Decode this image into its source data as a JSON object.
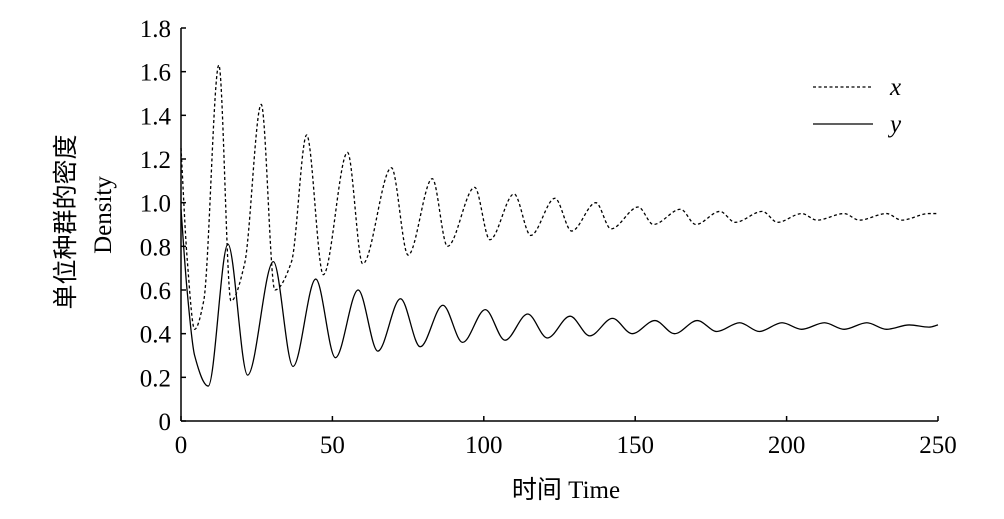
{
  "chart_data": {
    "type": "line",
    "xlabel": "时间 Time",
    "ylabel_cn": "单位种群的密度",
    "ylabel_en": "Density",
    "xlim": [
      0,
      250
    ],
    "ylim": [
      0,
      1.8
    ],
    "xticks": [
      0,
      50,
      100,
      150,
      200,
      250
    ],
    "xtick_labels": [
      "0",
      "50",
      "100",
      "150",
      "200",
      "250"
    ],
    "yticks": [
      0,
      0.2,
      0.4,
      0.6,
      0.8,
      1.0,
      1.2,
      1.4,
      1.6,
      1.8
    ],
    "ytick_labels": [
      "0",
      "0.2",
      "0.4",
      "0.6",
      "0.8",
      "1.0",
      "1.2",
      "1.4",
      "1.6",
      "1.8"
    ],
    "grid": false,
    "legend": "top-right",
    "series": [
      {
        "name": "x",
        "style": "dashed",
        "color": "#000000",
        "x": [
          0,
          2,
          4.5,
          7.5,
          12.5,
          16.5,
          21,
          26.5,
          31,
          36.5,
          41.5,
          47,
          55,
          60,
          69.5,
          75,
          83,
          88,
          97,
          102,
          110,
          115.5,
          123.5,
          129,
          137,
          142,
          151,
          156,
          165,
          170,
          178,
          183,
          192,
          197,
          205,
          210,
          219,
          224,
          233,
          238,
          247,
          250
        ],
        "y": [
          1.25,
          0.75,
          0.42,
          0.55,
          1.63,
          0.55,
          0.72,
          1.45,
          0.6,
          0.73,
          1.31,
          0.67,
          1.23,
          0.72,
          1.16,
          0.76,
          1.11,
          0.8,
          1.07,
          0.83,
          1.04,
          0.85,
          1.02,
          0.87,
          1.0,
          0.88,
          0.98,
          0.9,
          0.97,
          0.9,
          0.96,
          0.91,
          0.96,
          0.91,
          0.95,
          0.92,
          0.95,
          0.92,
          0.95,
          0.92,
          0.95,
          0.95
        ]
      },
      {
        "name": "y",
        "style": "solid",
        "color": "#000000",
        "x": [
          0,
          2,
          4.5,
          9,
          15.5,
          22,
          30.5,
          37,
          44.5,
          51,
          58.5,
          65,
          72.5,
          79,
          86.5,
          93,
          100.5,
          107,
          114.5,
          121,
          128.5,
          135,
          142.5,
          149,
          156.5,
          163,
          170.5,
          177,
          184.5,
          191,
          198.5,
          205,
          212.5,
          219,
          226.5,
          233,
          240.5,
          247,
          250
        ],
        "y": [
          0.97,
          0.6,
          0.3,
          0.16,
          0.81,
          0.21,
          0.73,
          0.25,
          0.65,
          0.29,
          0.6,
          0.32,
          0.56,
          0.34,
          0.53,
          0.36,
          0.51,
          0.37,
          0.49,
          0.38,
          0.48,
          0.39,
          0.47,
          0.4,
          0.46,
          0.4,
          0.46,
          0.41,
          0.45,
          0.41,
          0.45,
          0.42,
          0.45,
          0.42,
          0.45,
          0.42,
          0.44,
          0.43,
          0.44
        ]
      }
    ]
  }
}
